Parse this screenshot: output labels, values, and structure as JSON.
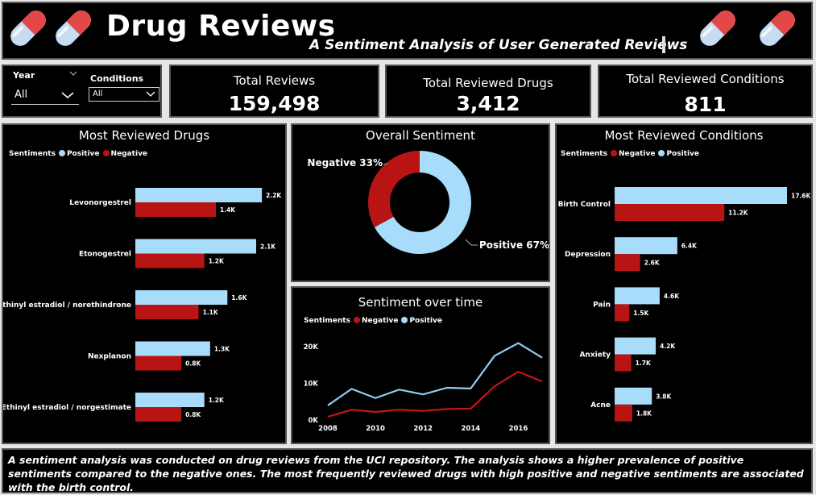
{
  "header": {
    "title": "Drug Reviews",
    "subtitle": "A Sentiment Analysis of User Generated Reviews"
  },
  "filters": {
    "year_label": "Year",
    "year_value": "All",
    "conditions_label": "Conditions",
    "conditions_value": "All"
  },
  "kpis": {
    "total_reviews_label": "Total Reviews",
    "total_reviews_value": "159,498",
    "total_drugs_label": "Total Reviewed Drugs",
    "total_drugs_value": "3,412",
    "total_conditions_label": "Total Reviewed Conditions",
    "total_conditions_value": "811"
  },
  "colors": {
    "positive": "#a8dcfb",
    "negative": "#b81414",
    "line_positive": "#8fcdf2",
    "line_negative": "#c41515"
  },
  "icons": {
    "pill": "pill-capsule-icon",
    "dropdown": "chevron-down-icon"
  },
  "chart_data": [
    {
      "type": "bar",
      "title": "Most Reviewed Drugs",
      "legend_title": "Sentiments",
      "legend": [
        "Positive",
        "Negative"
      ],
      "categories": [
        "Levonorgestrel",
        "Etonogestrel",
        "Ethinyl estradiol / norethindrone",
        "Nexplanon",
        "Ethinyl estradiol / norgestimate"
      ],
      "series": [
        {
          "name": "Positive",
          "values": [
            2.2,
            2.1,
            1.6,
            1.3,
            1.2
          ],
          "labels": [
            "2.2K",
            "2.1K",
            "1.6K",
            "1.3K",
            "1.2K"
          ]
        },
        {
          "name": "Negative",
          "values": [
            1.4,
            1.2,
            1.1,
            0.8,
            0.8
          ],
          "labels": [
            "1.4K",
            "1.2K",
            "1.1K",
            "0.8K",
            "0.8K"
          ]
        }
      ],
      "xlim": [
        0,
        2.45
      ]
    },
    {
      "type": "pie",
      "title": "Overall Sentiment",
      "slices": [
        {
          "name": "Positive",
          "value": 67,
          "label": "Positive 67%"
        },
        {
          "name": "Negative",
          "value": 33,
          "label": "Negative 33%"
        }
      ]
    },
    {
      "type": "line",
      "title": "Sentiment over time",
      "legend_title": "Sentiments",
      "legend": [
        "Negative",
        "Positive"
      ],
      "x": [
        2008,
        2009,
        2010,
        2011,
        2012,
        2013,
        2014,
        2015,
        2016,
        2017
      ],
      "xticks": [
        "2008",
        "2010",
        "2012",
        "2014",
        "2016"
      ],
      "yticks": [
        "0K",
        "10K",
        "20K"
      ],
      "ylim": [
        0,
        22000
      ],
      "series": [
        {
          "name": "Positive",
          "values": [
            4000,
            8500,
            6000,
            8300,
            7000,
            8800,
            8600,
            17500,
            21000,
            17000
          ]
        },
        {
          "name": "Negative",
          "values": [
            900,
            2800,
            2200,
            2800,
            2500,
            3000,
            3100,
            9200,
            13200,
            10500
          ]
        }
      ]
    },
    {
      "type": "bar",
      "title": "Most Reviewed Conditions",
      "legend_title": "Sentiments",
      "legend": [
        "Negative",
        "Positive"
      ],
      "categories": [
        "Birth Control",
        "Depression",
        "Pain",
        "Anxiety",
        "Acne"
      ],
      "series": [
        {
          "name": "Positive",
          "values": [
            17.6,
            6.4,
            4.6,
            4.2,
            3.8
          ],
          "labels": [
            "17.6K",
            "6.4K",
            "4.6K",
            "4.2K",
            "3.8K"
          ]
        },
        {
          "name": "Negative",
          "values": [
            11.2,
            2.6,
            1.5,
            1.7,
            1.8
          ],
          "labels": [
            "11.2K",
            "2.6K",
            "1.5K",
            "1.7K",
            "1.8K"
          ]
        }
      ],
      "xlim": [
        0,
        17.6
      ]
    }
  ],
  "summary": "A sentiment analysis  was conducted on drug reviews from the UCI repository. The analysis shows a higher prevalence of positive sentiments  compared to the negative ones. The most frequently reviewed drugs with high positive and negative sentiments are associated with the birth control."
}
